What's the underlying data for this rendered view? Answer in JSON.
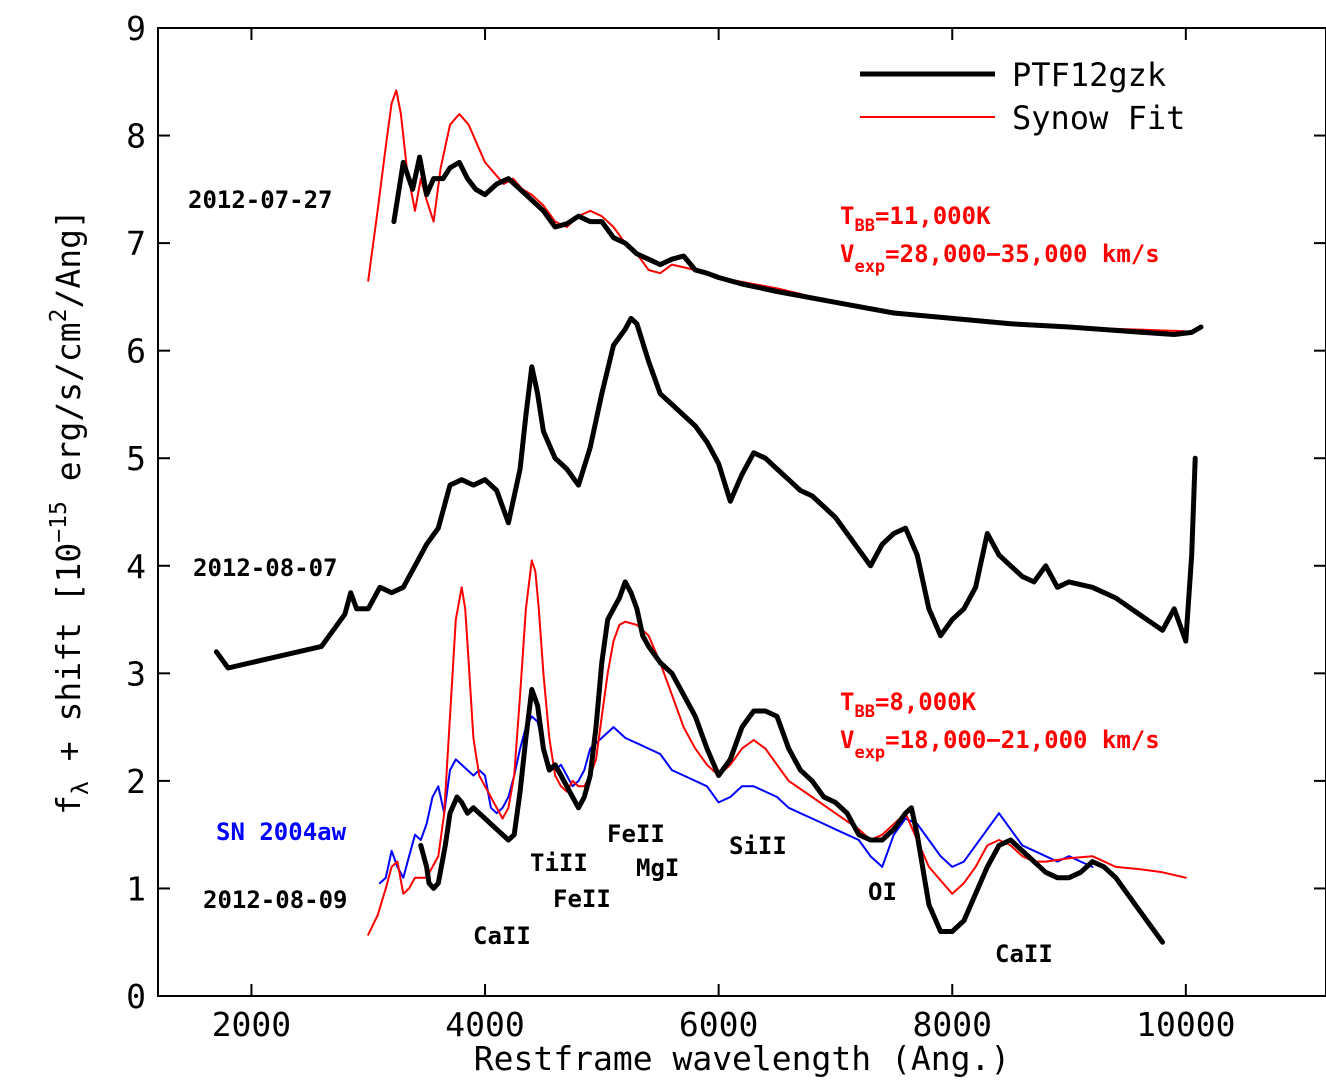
{
  "chart_data": {
    "type": "line",
    "xlabel": "Restframe wavelength (Ang.)",
    "ylabel": {
      "f": "f",
      "lambda": "λ",
      "mid": " + shift [10",
      "exp": "−15",
      "erg": " erg/s/cm",
      "sq": "2",
      "ang": "/Ang]"
    },
    "xlim": [
      1200,
      11200
    ],
    "ylim": [
      0,
      9
    ],
    "xticks": [
      2000,
      4000,
      6000,
      8000,
      10000
    ],
    "xtick_labels": [
      "2000",
      "4000",
      "6000",
      "8000",
      "10000"
    ],
    "yticks": [
      0,
      1,
      2,
      3,
      4,
      5,
      6,
      7,
      8,
      9
    ],
    "ytick_labels": [
      "0",
      "1",
      "2",
      "3",
      "4",
      "5",
      "6",
      "7",
      "8",
      "9"
    ],
    "grid": false,
    "legend_position": "top-right",
    "legend": [
      {
        "label": "PTF12gzk",
        "color": "#000000"
      },
      {
        "label": "Synow Fit",
        "color": "#ff0000"
      }
    ],
    "series": [
      {
        "name": "2012-07-27 PTF12gzk",
        "color": "#000000",
        "style": "thick",
        "x": [
          3220,
          3300,
          3380,
          3440,
          3500,
          3560,
          3640,
          3700,
          3780,
          3850,
          3920,
          4000,
          4100,
          4200,
          4300,
          4400,
          4500,
          4600,
          4700,
          4800,
          4900,
          5000,
          5100,
          5200,
          5300,
          5400,
          5500,
          5600,
          5700,
          5800,
          5900,
          6000,
          6200,
          6500,
          7000,
          7500,
          8000,
          8500,
          9000,
          9500,
          9900,
          10050,
          10130
        ],
        "y": [
          7.2,
          7.75,
          7.5,
          7.8,
          7.45,
          7.6,
          7.6,
          7.7,
          7.75,
          7.6,
          7.5,
          7.45,
          7.55,
          7.6,
          7.5,
          7.4,
          7.3,
          7.15,
          7.18,
          7.25,
          7.2,
          7.2,
          7.05,
          7.0,
          6.9,
          6.85,
          6.8,
          6.85,
          6.88,
          6.75,
          6.72,
          6.68,
          6.62,
          6.55,
          6.45,
          6.35,
          6.3,
          6.25,
          6.22,
          6.18,
          6.15,
          6.17,
          6.22
        ]
      },
      {
        "name": "2012-07-27 Synow Fit",
        "color": "#ff0000",
        "style": "thin",
        "x": [
          3000,
          3080,
          3150,
          3200,
          3240,
          3280,
          3330,
          3400,
          3450,
          3500,
          3560,
          3620,
          3700,
          3780,
          3860,
          3940,
          4000,
          4080,
          4160,
          4240,
          4320,
          4400,
          4500,
          4600,
          4700,
          4800,
          4900,
          5000,
          5100,
          5200,
          5300,
          5400,
          5500,
          5600,
          5800,
          6000,
          6500,
          7000,
          7500,
          8000,
          8500,
          9000,
          9500,
          10000
        ],
        "y": [
          6.65,
          7.3,
          7.9,
          8.3,
          8.42,
          8.2,
          7.7,
          7.3,
          7.6,
          7.4,
          7.2,
          7.7,
          8.1,
          8.2,
          8.1,
          7.9,
          7.75,
          7.65,
          7.55,
          7.6,
          7.5,
          7.45,
          7.35,
          7.2,
          7.15,
          7.25,
          7.3,
          7.25,
          7.15,
          7.0,
          6.9,
          6.75,
          6.72,
          6.8,
          6.75,
          6.68,
          6.58,
          6.45,
          6.35,
          6.3,
          6.26,
          6.22,
          6.2,
          6.18
        ]
      },
      {
        "name": "2012-08-07 PTF12gzk",
        "color": "#000000",
        "style": "thick",
        "x": [
          1700,
          1800,
          2000,
          2200,
          2400,
          2600,
          2700,
          2800,
          2850,
          2900,
          3000,
          3100,
          3200,
          3300,
          3400,
          3500,
          3600,
          3700,
          3800,
          3900,
          4000,
          4100,
          4200,
          4300,
          4350,
          4400,
          4450,
          4500,
          4600,
          4700,
          4800,
          4900,
          5000,
          5100,
          5200,
          5250,
          5300,
          5400,
          5500,
          5600,
          5700,
          5800,
          5900,
          6000,
          6100,
          6200,
          6300,
          6400,
          6500,
          6600,
          6700,
          6800,
          6900,
          7000,
          7100,
          7200,
          7300,
          7400,
          7500,
          7600,
          7700,
          7800,
          7900,
          8000,
          8100,
          8200,
          8300,
          8400,
          8500,
          8600,
          8700,
          8800,
          8900,
          9000,
          9200,
          9400,
          9600,
          9800,
          9900,
          10000,
          10050,
          10080
        ],
        "y": [
          3.2,
          3.05,
          3.1,
          3.15,
          3.2,
          3.25,
          3.4,
          3.55,
          3.75,
          3.6,
          3.6,
          3.8,
          3.75,
          3.8,
          4.0,
          4.2,
          4.35,
          4.75,
          4.8,
          4.75,
          4.8,
          4.7,
          4.4,
          4.9,
          5.4,
          5.85,
          5.6,
          5.25,
          5.0,
          4.9,
          4.75,
          5.1,
          5.6,
          6.05,
          6.2,
          6.3,
          6.25,
          5.9,
          5.6,
          5.5,
          5.4,
          5.3,
          5.15,
          4.95,
          4.6,
          4.85,
          5.05,
          5.0,
          4.9,
          4.8,
          4.7,
          4.65,
          4.55,
          4.45,
          4.3,
          4.15,
          4.0,
          4.2,
          4.3,
          4.35,
          4.1,
          3.6,
          3.35,
          3.5,
          3.6,
          3.8,
          4.3,
          4.1,
          4.0,
          3.9,
          3.85,
          4.0,
          3.8,
          3.85,
          3.8,
          3.7,
          3.55,
          3.4,
          3.6,
          3.3,
          4.1,
          5.0
        ]
      },
      {
        "name": "2012-08-09 PTF12gzk",
        "color": "#000000",
        "style": "thick",
        "x": [
          3450,
          3500,
          3520,
          3560,
          3600,
          3660,
          3700,
          3760,
          3800,
          3850,
          3900,
          3950,
          4000,
          4100,
          4200,
          4250,
          4300,
          4350,
          4400,
          4450,
          4500,
          4550,
          4600,
          4650,
          4700,
          4750,
          4800,
          4850,
          4900,
          4950,
          5000,
          5050,
          5100,
          5150,
          5200,
          5250,
          5300,
          5350,
          5400,
          5500,
          5600,
          5700,
          5800,
          5900,
          6000,
          6100,
          6200,
          6300,
          6400,
          6500,
          6600,
          6700,
          6800,
          6900,
          7000,
          7100,
          7200,
          7300,
          7400,
          7500,
          7600,
          7650,
          7700,
          7800,
          7900,
          8000,
          8100,
          8200,
          8300,
          8400,
          8500,
          8600,
          8700,
          8800,
          8900,
          9000,
          9100,
          9200,
          9300,
          9400,
          9500,
          9600,
          9700,
          9800
        ],
        "y": [
          1.4,
          1.2,
          1.05,
          1.0,
          1.05,
          1.4,
          1.7,
          1.85,
          1.8,
          1.7,
          1.75,
          1.7,
          1.65,
          1.55,
          1.45,
          1.5,
          1.9,
          2.4,
          2.85,
          2.7,
          2.3,
          2.1,
          2.15,
          2.05,
          1.95,
          1.85,
          1.75,
          1.85,
          2.05,
          2.5,
          3.1,
          3.5,
          3.6,
          3.7,
          3.85,
          3.75,
          3.6,
          3.35,
          3.25,
          3.1,
          3.0,
          2.8,
          2.6,
          2.3,
          2.05,
          2.2,
          2.5,
          2.65,
          2.65,
          2.6,
          2.3,
          2.1,
          2.0,
          1.85,
          1.8,
          1.7,
          1.5,
          1.45,
          1.45,
          1.55,
          1.7,
          1.75,
          1.5,
          0.85,
          0.6,
          0.6,
          0.7,
          0.95,
          1.2,
          1.4,
          1.45,
          1.35,
          1.25,
          1.15,
          1.1,
          1.1,
          1.15,
          1.25,
          1.2,
          1.1,
          0.95,
          0.8,
          0.65,
          0.5
        ]
      },
      {
        "name": "2012-08-09 Synow Fit",
        "color": "#ff0000",
        "style": "thin",
        "x": [
          3000,
          3080,
          3150,
          3200,
          3250,
          3300,
          3350,
          3400,
          3500,
          3600,
          3650,
          3700,
          3750,
          3800,
          3830,
          3860,
          3900,
          3950,
          4000,
          4050,
          4100,
          4150,
          4200,
          4250,
          4300,
          4350,
          4400,
          4430,
          4460,
          4500,
          4550,
          4600,
          4650,
          4700,
          4750,
          4800,
          4850,
          4900,
          4950,
          5000,
          5050,
          5100,
          5150,
          5200,
          5300,
          5400,
          5500,
          5600,
          5700,
          5800,
          5900,
          6000,
          6100,
          6200,
          6300,
          6400,
          6500,
          6600,
          6800,
          7000,
          7200,
          7300,
          7400,
          7600,
          7800,
          8000,
          8100,
          8200,
          8300,
          8400,
          8500,
          8600,
          8700,
          8800,
          9000,
          9200,
          9400,
          9600,
          9800,
          10000
        ],
        "y": [
          0.57,
          0.75,
          1.0,
          1.2,
          1.25,
          0.95,
          1.0,
          1.1,
          1.1,
          1.3,
          1.7,
          2.6,
          3.5,
          3.8,
          3.6,
          3.1,
          2.4,
          2.05,
          1.95,
          1.85,
          1.75,
          1.65,
          1.75,
          2.05,
          2.8,
          3.6,
          4.05,
          3.95,
          3.6,
          3.0,
          2.4,
          2.05,
          1.95,
          1.9,
          2.0,
          1.95,
          1.95,
          2.05,
          2.2,
          2.6,
          3.0,
          3.3,
          3.45,
          3.48,
          3.45,
          3.35,
          3.1,
          2.8,
          2.5,
          2.3,
          2.15,
          2.05,
          2.15,
          2.3,
          2.38,
          2.3,
          2.15,
          2.0,
          1.85,
          1.7,
          1.55,
          1.45,
          1.5,
          1.7,
          1.2,
          0.95,
          1.05,
          1.2,
          1.4,
          1.45,
          1.4,
          1.3,
          1.25,
          1.25,
          1.28,
          1.3,
          1.2,
          1.18,
          1.15,
          1.1
        ]
      },
      {
        "name": "SN 2004aw",
        "color": "#0000ff",
        "style": "thin",
        "x": [
          3100,
          3150,
          3200,
          3250,
          3300,
          3350,
          3400,
          3450,
          3500,
          3550,
          3600,
          3650,
          3700,
          3750,
          3800,
          3850,
          3900,
          3950,
          4000,
          4050,
          4100,
          4150,
          4200,
          4250,
          4300,
          4350,
          4400,
          4450,
          4500,
          4550,
          4600,
          4650,
          4700,
          4750,
          4800,
          4850,
          4900,
          4950,
          5000,
          5050,
          5100,
          5150,
          5200,
          5300,
          5400,
          5500,
          5600,
          5700,
          5800,
          5900,
          6000,
          6100,
          6200,
          6300,
          6400,
          6500,
          6600,
          6700,
          6800,
          6900,
          7000,
          7100,
          7200,
          7300,
          7400,
          7500,
          7600,
          7700,
          7800,
          7900,
          8000,
          8100,
          8200,
          8300,
          8400,
          8500,
          8600,
          8700,
          8800,
          8900,
          9000,
          9100,
          9200
        ],
        "y": [
          1.05,
          1.1,
          1.35,
          1.2,
          1.1,
          1.3,
          1.5,
          1.45,
          1.6,
          1.85,
          1.95,
          1.7,
          2.1,
          2.2,
          2.15,
          2.1,
          2.05,
          2.1,
          2.05,
          1.75,
          1.7,
          1.75,
          1.85,
          2.05,
          2.3,
          2.5,
          2.6,
          2.55,
          2.3,
          2.15,
          2.1,
          2.15,
          2.05,
          1.95,
          2.0,
          2.1,
          2.3,
          2.35,
          2.4,
          2.45,
          2.5,
          2.45,
          2.4,
          2.35,
          2.3,
          2.25,
          2.1,
          2.05,
          2.0,
          1.95,
          1.8,
          1.85,
          1.95,
          1.95,
          1.9,
          1.85,
          1.75,
          1.7,
          1.65,
          1.6,
          1.55,
          1.5,
          1.45,
          1.3,
          1.2,
          1.5,
          1.65,
          1.6,
          1.45,
          1.3,
          1.2,
          1.25,
          1.4,
          1.55,
          1.7,
          1.55,
          1.4,
          1.35,
          1.3,
          1.25,
          1.3,
          1.25,
          1.2
        ]
      }
    ],
    "annotations": [
      {
        "id": "date1",
        "text": "2012-07-27",
        "color": "#000000"
      },
      {
        "id": "date2",
        "text": "2012-08-07",
        "color": "#000000"
      },
      {
        "id": "date3",
        "text": "2012-08-09",
        "color": "#000000"
      },
      {
        "id": "sn",
        "text": "SN 2004aw",
        "color": "#0000ff"
      },
      {
        "id": "caII_1",
        "text": "CaII",
        "color": "#000000"
      },
      {
        "id": "tiII",
        "text": "TiII",
        "color": "#000000"
      },
      {
        "id": "feII_1",
        "text": "FeII",
        "color": "#000000"
      },
      {
        "id": "feII_2",
        "text": "FeII",
        "color": "#000000"
      },
      {
        "id": "mgI",
        "text": "MgI",
        "color": "#000000"
      },
      {
        "id": "siII",
        "text": "SiII",
        "color": "#000000"
      },
      {
        "id": "oI",
        "text": "OI",
        "color": "#000000"
      },
      {
        "id": "caII_2",
        "text": "CaII",
        "color": "#000000"
      }
    ],
    "fit_params": [
      {
        "T_prefix": "T",
        "T_sub": "BB",
        "T_value": "=11,000K",
        "V_prefix": "V",
        "V_sub": "exp",
        "V_value": "=28,000−35,000 km/s",
        "color": "#ff0000"
      },
      {
        "T_prefix": "T",
        "T_sub": "BB",
        "T_value": "=8,000K",
        "V_prefix": "V",
        "V_sub": "exp",
        "V_value": "=18,000−21,000 km/s",
        "color": "#ff0000"
      }
    ]
  }
}
